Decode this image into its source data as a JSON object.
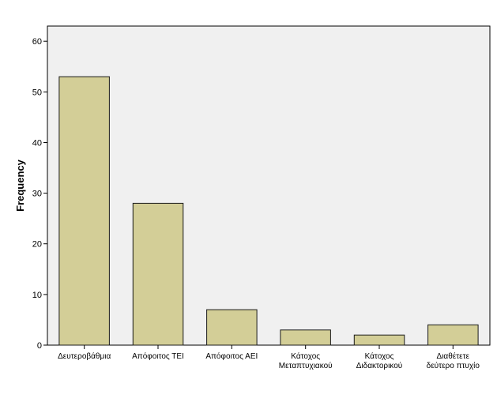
{
  "chart_data": {
    "type": "bar",
    "title": "",
    "xlabel": "",
    "ylabel": "Frequency",
    "ylim": [
      0,
      63
    ],
    "yticks": [
      0,
      10,
      20,
      30,
      40,
      50,
      60
    ],
    "categories": [
      [
        "Δευτεροβάθμια"
      ],
      [
        "Απόφοιτος ΤΕΙ"
      ],
      [
        "Απόφοιτος ΑΕΙ"
      ],
      [
        "Κάτοχος",
        "Μεταπτυχιακού"
      ],
      [
        "Κάτοχος",
        "Διδακτορικού"
      ],
      [
        "Διαθέτετε",
        "δεύτερο πτυχίο"
      ]
    ],
    "values": [
      53,
      28,
      7,
      3,
      2,
      4
    ],
    "grid": false,
    "legend": "none",
    "colors": {
      "plot_background": "#f0f0f0",
      "bar_fill": "#d3ce97",
      "bar_stroke": "#1a1a1a",
      "axis": "#000000",
      "text": "#000000"
    }
  }
}
